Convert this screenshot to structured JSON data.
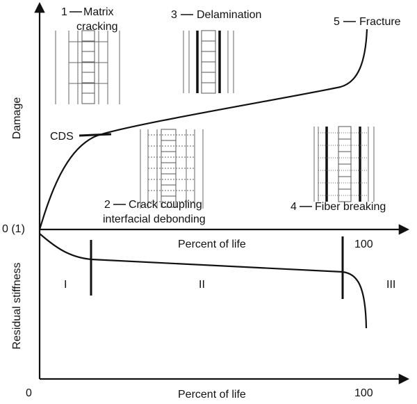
{
  "top_panel": {
    "y_label": "Damage",
    "x_label": "Percent of life",
    "origin_label": "0 (1)",
    "x_end_label": "100",
    "cds_label": "CDS",
    "stages": [
      {
        "number": "1",
        "label_lines": [
          "Matrix",
          "cracking"
        ]
      },
      {
        "number": "2",
        "label_lines": [
          "Crack coupling",
          "interfacial debonding"
        ]
      },
      {
        "number": "3",
        "label_lines": [
          "Delamination"
        ]
      },
      {
        "number": "4",
        "label_lines": [
          "Fiber breaking"
        ]
      },
      {
        "number": "5",
        "label_lines": [
          "Fracture"
        ]
      }
    ]
  },
  "bottom_panel": {
    "y_label": "Residual stiffness",
    "x_label": "Percent of life",
    "origin_label": "0",
    "x_end_label": "100",
    "regions": [
      "I",
      "II",
      "III"
    ]
  }
}
